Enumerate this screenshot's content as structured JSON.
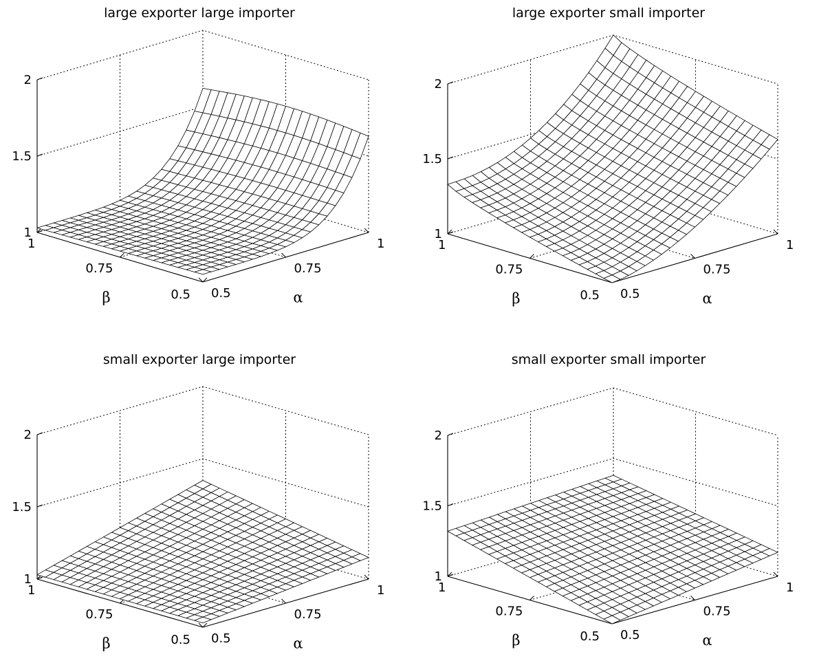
{
  "chart_data": [
    {
      "type": "surface",
      "title": "large exporter large importer",
      "xlabel": "α",
      "ylabel": "β",
      "zlim": [
        1,
        2
      ],
      "z_ticks": [
        "1",
        "1.5",
        "2"
      ],
      "x_ticks": [
        "0.5",
        "0.75",
        "1"
      ],
      "y_ticks": [
        "0.5",
        "0.75",
        "1"
      ],
      "corner_values": {
        "beta1_alpha05": 1.03,
        "beta1_alpha1": 1.62,
        "beta05_alpha05": 1.05,
        "beta05_alpha1": 1.63
      },
      "z_shape": "cliff"
    },
    {
      "type": "surface",
      "title": "large exporter small importer",
      "xlabel": "α",
      "ylabel": "β",
      "zlim": [
        1,
        2
      ],
      "z_ticks": [
        "1",
        "1.5",
        "2"
      ],
      "x_ticks": [
        "0.5",
        "0.75",
        "1"
      ],
      "y_ticks": [
        "0.5",
        "0.75",
        "1"
      ],
      "corner_values": {
        "beta1_alpha05": 1.33,
        "beta1_alpha1": 2.0,
        "beta05_alpha05": 1.0,
        "beta05_alpha1": 1.63
      },
      "z_shape": "curved"
    },
    {
      "type": "surface",
      "title": "small exporter large importer",
      "xlabel": "α",
      "ylabel": "β",
      "zlim": [
        1,
        2
      ],
      "z_ticks": [
        "1",
        "1.5",
        "2"
      ],
      "x_ticks": [
        "0.5",
        "0.75",
        "1"
      ],
      "y_ticks": [
        "0.5",
        "0.75",
        "1"
      ],
      "corner_values": {
        "beta1_alpha05": 1.03,
        "beta1_alpha1": 1.35,
        "beta05_alpha05": 1.03,
        "beta05_alpha1": 1.15
      },
      "z_shape": "gentle"
    },
    {
      "type": "surface",
      "title": "small exporter small importer",
      "xlabel": "α",
      "ylabel": "β",
      "zlim": [
        1,
        2
      ],
      "z_ticks": [
        "1",
        "1.5",
        "2"
      ],
      "x_ticks": [
        "0.5",
        "0.75",
        "1"
      ],
      "y_ticks": [
        "0.5",
        "0.75",
        "1"
      ],
      "corner_values": {
        "beta1_alpha05": 1.32,
        "beta1_alpha1": 1.38,
        "beta05_alpha05": 1.0,
        "beta05_alpha1": 1.17
      },
      "z_shape": "planar"
    }
  ]
}
